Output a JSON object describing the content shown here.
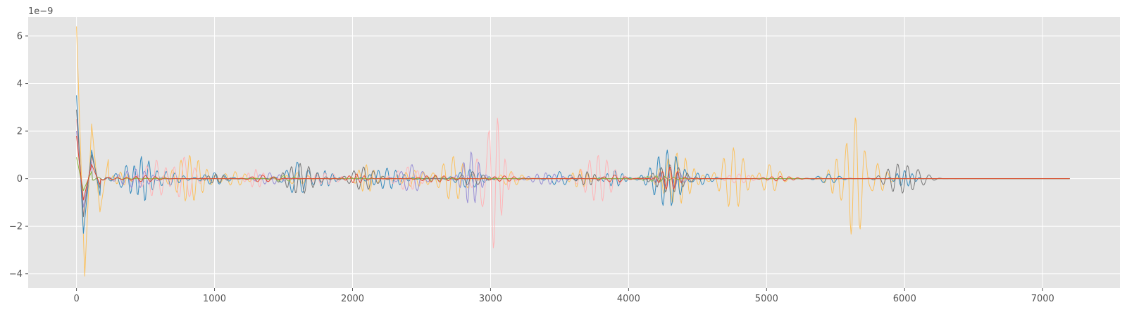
{
  "chart_data": {
    "type": "line",
    "style": "ggplot",
    "grid": true,
    "legend": "none",
    "xlim": [
      -350,
      7560
    ],
    "ylim": [
      -4.6e-09,
      6.8e-09
    ],
    "y_scale_offset_label": "1e−9",
    "x_ticks": [
      0,
      1000,
      2000,
      3000,
      4000,
      5000,
      6000,
      7000
    ],
    "x_tick_labels": [
      "0",
      "1000",
      "2000",
      "3000",
      "4000",
      "5000",
      "6000",
      "7000"
    ],
    "y_ticks": [
      -4e-09,
      -2e-09,
      0,
      2e-09,
      4e-09,
      6e-09
    ],
    "y_tick_labels": [
      "−4",
      "−2",
      "0",
      "2",
      "4",
      "6"
    ],
    "x_max": 7200,
    "series": [
      {
        "color": "#FBC15E",
        "linewidth": 1,
        "impulse": [
          0,
          6.4e-09,
          60,
          -4.1e-09,
          110,
          2.3e-09,
          170,
          -1.4e-09,
          230,
          8e-10
        ],
        "bursts": [
          [
            320,
            3e-10
          ],
          [
            820,
            1e-09
          ],
          [
            1150,
            3e-10
          ],
          [
            1600,
            2.5e-10
          ],
          [
            2100,
            6e-10
          ],
          [
            2450,
            3.5e-10
          ],
          [
            2730,
            9.5e-10
          ],
          [
            3150,
            3e-10
          ],
          [
            3650,
            4e-10
          ],
          [
            4350,
            1.1e-09
          ],
          [
            4760,
            1.3e-09
          ],
          [
            5020,
            6e-10
          ],
          [
            5550,
            9e-10
          ],
          [
            5640,
            2.65e-09
          ],
          [
            5730,
            1.7e-09
          ]
        ]
      },
      {
        "color": "#348ABD",
        "linewidth": 1,
        "impulse": [
          0,
          3.5e-09,
          50,
          -2.3e-09,
          110,
          1.2e-09,
          170,
          -7e-10
        ],
        "bursts": [
          [
            360,
            4e-10
          ],
          [
            470,
            1e-09
          ],
          [
            650,
            3e-10
          ],
          [
            1000,
            2.5e-10
          ],
          [
            1600,
            7e-10
          ],
          [
            1800,
            3.5e-10
          ],
          [
            2250,
            4.5e-10
          ],
          [
            2850,
            4e-10
          ],
          [
            3500,
            3e-10
          ],
          [
            3900,
            3.5e-10
          ],
          [
            4280,
            1.2e-09
          ],
          [
            4500,
            3e-10
          ],
          [
            5450,
            2e-10
          ],
          [
            6000,
            3.5e-10
          ]
        ]
      },
      {
        "color": "#FFB5B8",
        "linewidth": 1,
        "impulse": [
          0,
          2.5e-09,
          50,
          -1.5e-09,
          110,
          8e-10
        ],
        "bursts": [
          [
            580,
            8e-10
          ],
          [
            780,
            9e-10
          ],
          [
            1300,
            4e-10
          ],
          [
            1800,
            2.5e-10
          ],
          [
            2400,
            5e-10
          ],
          [
            2980,
            1.7e-09
          ],
          [
            3050,
            1.8e-09
          ],
          [
            3780,
            1e-09
          ],
          [
            4800,
            2e-10
          ]
        ]
      },
      {
        "color": "#988ED5",
        "linewidth": 1,
        "impulse": [
          0,
          2e-09,
          50,
          -1.2e-09,
          110,
          7e-10
        ],
        "bursts": [
          [
            430,
            4e-10
          ],
          [
            1400,
            2.5e-10
          ],
          [
            2430,
            6e-10
          ],
          [
            2860,
            1.15e-09
          ],
          [
            3400,
            2.5e-10
          ],
          [
            4300,
            4e-10
          ]
        ]
      },
      {
        "color": "#777777",
        "linewidth": 1,
        "impulse": [
          0,
          2.9e-09,
          50,
          -1.6e-09,
          110,
          1e-09,
          170,
          -4e-10
        ],
        "bursts": [
          [
            1010,
            2e-10
          ],
          [
            1620,
            6.5e-10
          ],
          [
            2080,
            5e-10
          ],
          [
            2870,
            3e-10
          ],
          [
            3700,
            3e-10
          ],
          [
            4300,
            6e-10
          ],
          [
            5950,
            6e-10
          ],
          [
            6100,
            3e-10
          ]
        ]
      },
      {
        "color": "#8EBA42",
        "linewidth": 1,
        "impulse": [
          0,
          9e-10,
          50,
          -5e-10,
          110,
          3e-10
        ],
        "bursts": [
          [
            1500,
            1.2e-10
          ],
          [
            2600,
            1.2e-10
          ],
          [
            4200,
            1.2e-10
          ]
        ]
      },
      {
        "color": "#E24A33",
        "linewidth": 1,
        "impulse": [
          0,
          1.8e-09,
          50,
          -9e-10,
          110,
          6e-10,
          170,
          -2.5e-10
        ],
        "bursts": [
          [
            500,
            1.2e-10
          ],
          [
            1350,
            1.5e-10
          ],
          [
            2030,
            2e-10
          ],
          [
            2600,
            1.5e-10
          ],
          [
            3100,
            1.2e-10
          ],
          [
            3900,
            1.5e-10
          ],
          [
            4300,
            5e-10
          ],
          [
            5100,
            1e-10
          ]
        ]
      }
    ]
  }
}
